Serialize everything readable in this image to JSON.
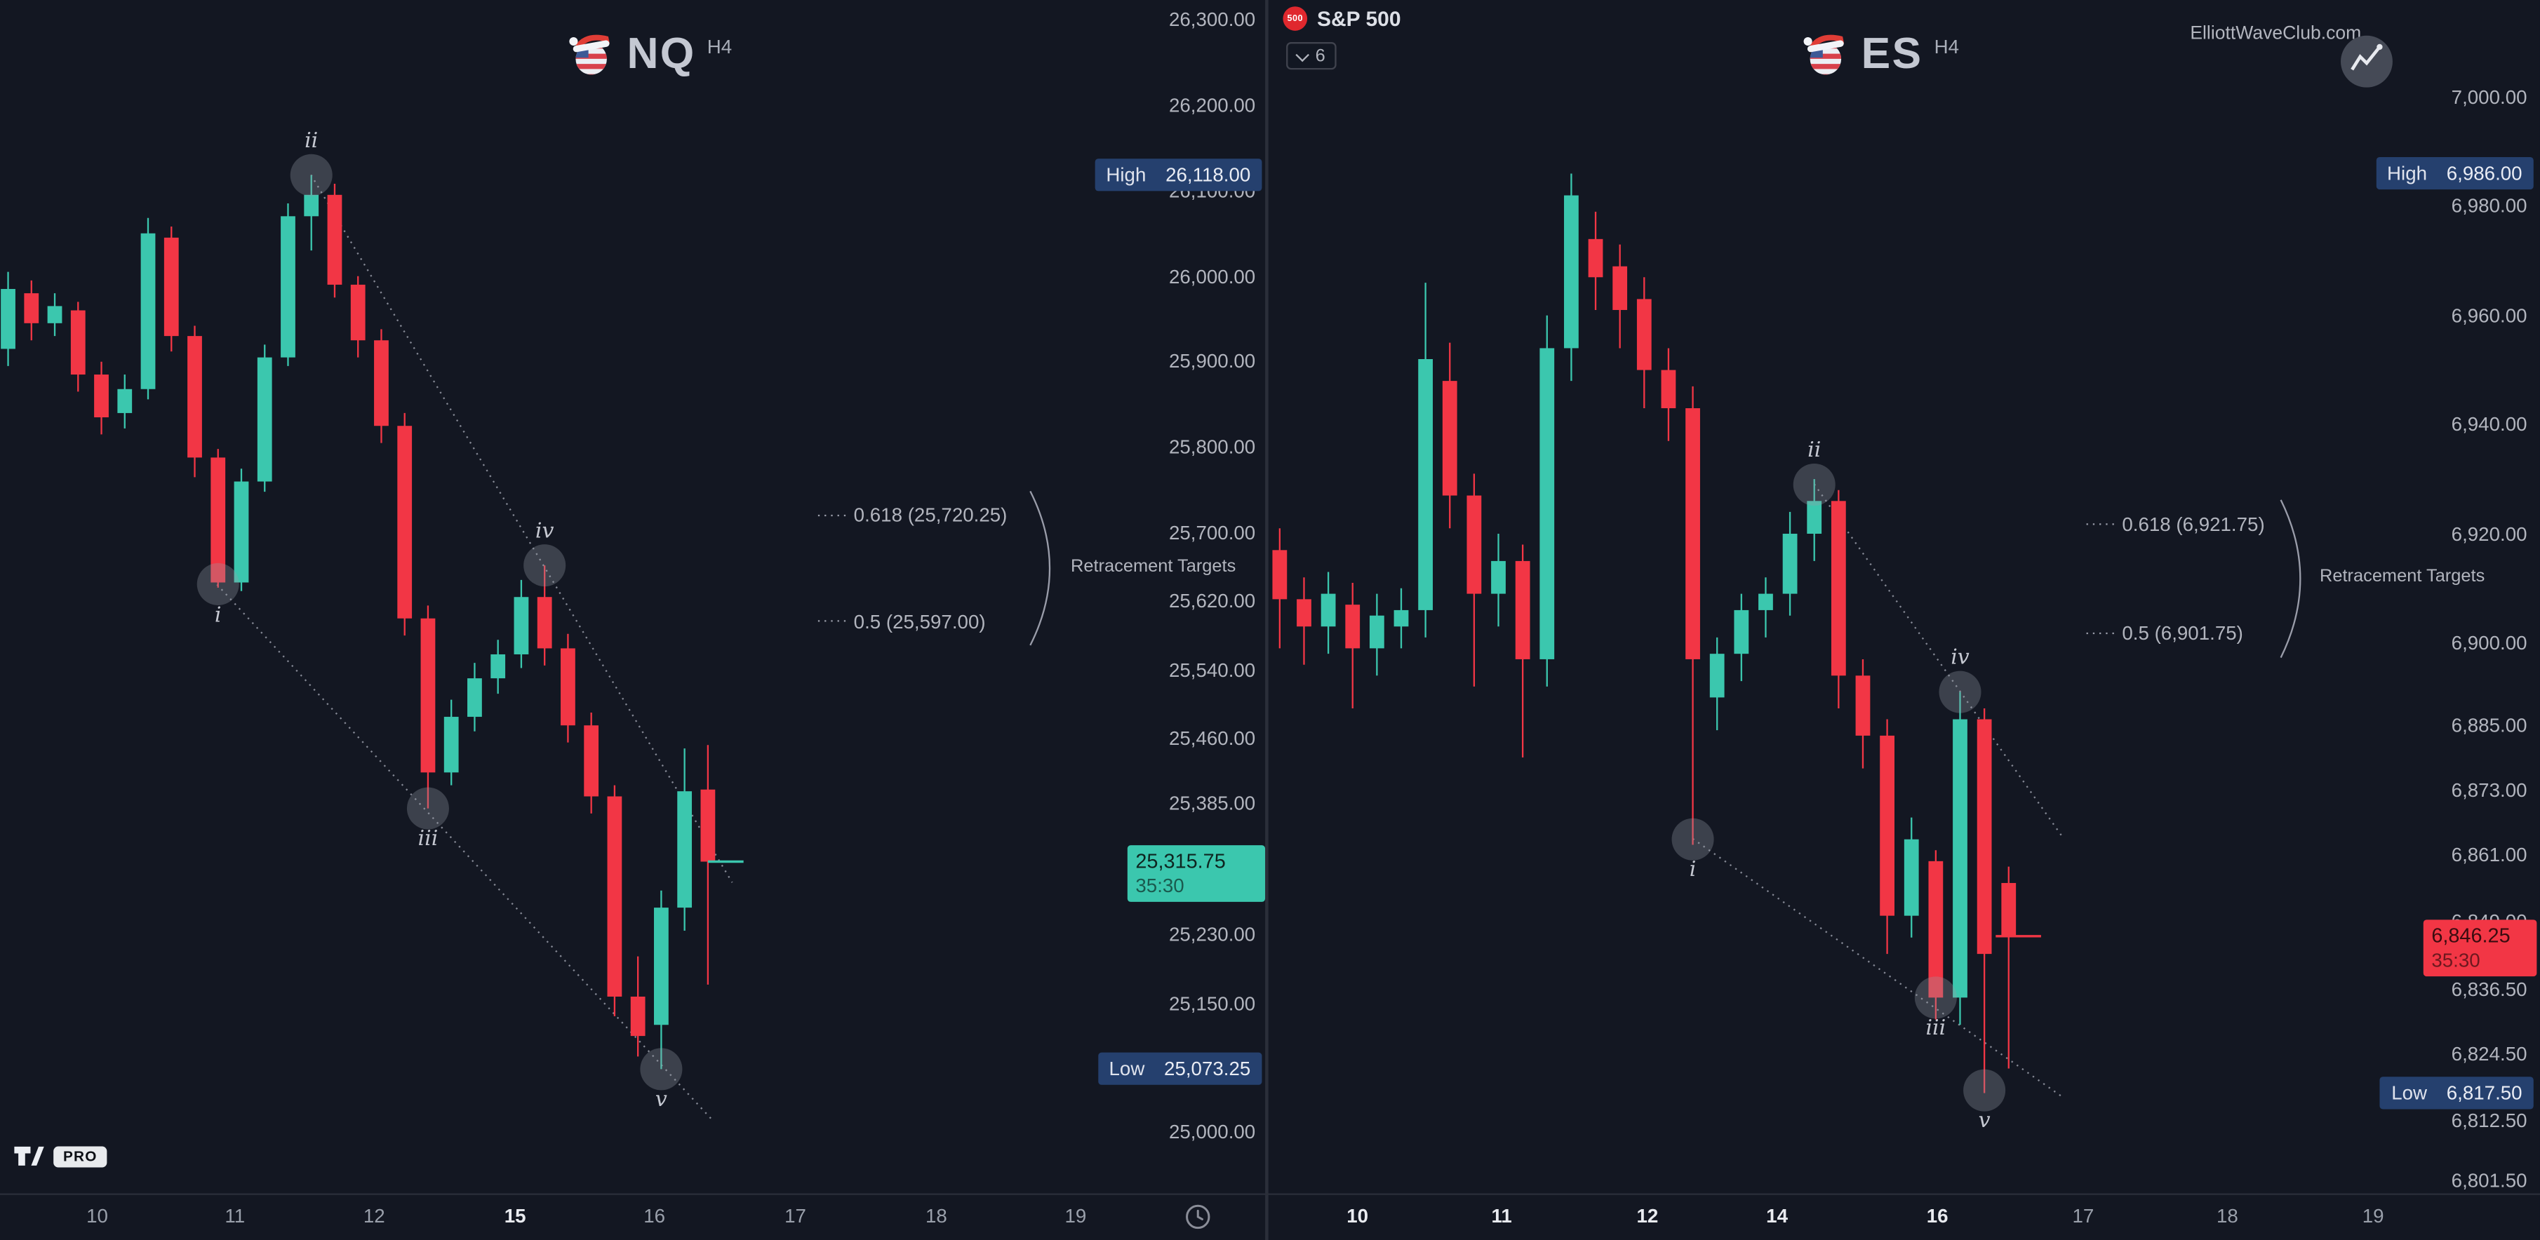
{
  "colors": {
    "bg": "#131722",
    "up": "#3bc7ae",
    "down": "#f23645",
    "axis_text": "#b2b5be",
    "dotted": "#9a9daa",
    "badge_bg": "#25406e",
    "divider": "#2a2e39"
  },
  "toolbar": {
    "symbol_label": "S&P 500",
    "badge": "500",
    "tree_count": "6"
  },
  "branding": {
    "site": "ElliottWaveClub.com",
    "pro": "PRO"
  },
  "chart_data": [
    {
      "id": "nq",
      "type": "candlestick",
      "symbol": "NQ",
      "timeframe": "H4",
      "high_badge": {
        "label": "High",
        "value": "26,118.00",
        "price": 26118
      },
      "low_badge": {
        "label": "Low",
        "value": "25,073.25",
        "price": 25073.25
      },
      "last_price": {
        "value": "25,315.75",
        "countdown": "35:30",
        "price": 25315.75,
        "direction": "up"
      },
      "retracement": {
        "caption": "Retracement Targets",
        "levels": [
          {
            "text": "0.618 (25,720.25)",
            "price": 25720.25
          },
          {
            "text": "0.5 (25,597.00)",
            "price": 25597.0
          }
        ]
      },
      "waves": [
        {
          "label": "i",
          "index": 9,
          "price": 25640,
          "side": "below"
        },
        {
          "label": "ii",
          "index": 13,
          "price": 26118,
          "side": "above"
        },
        {
          "label": "iii",
          "index": 18,
          "price": 25378,
          "side": "below"
        },
        {
          "label": "iv",
          "index": 23,
          "price": 25662,
          "side": "above"
        },
        {
          "label": "v",
          "index": 28,
          "price": 25073.25,
          "side": "below"
        }
      ],
      "y_ticks": [
        {
          "label": "26,300.00",
          "price": 26300
        },
        {
          "label": "26,200.00",
          "price": 26200
        },
        {
          "label": "26,100.00",
          "price": 26100
        },
        {
          "label": "26,000.00",
          "price": 26000
        },
        {
          "label": "25,900.00",
          "price": 25900
        },
        {
          "label": "25,800.00",
          "price": 25800
        },
        {
          "label": "25,700.00",
          "price": 25700
        },
        {
          "label": "25,620.00",
          "price": 25620
        },
        {
          "label": "25,540.00",
          "price": 25540
        },
        {
          "label": "25,460.00",
          "price": 25460
        },
        {
          "label": "25,385.00",
          "price": 25385
        },
        {
          "label": "25,230.00",
          "price": 25230
        },
        {
          "label": "25,150.00",
          "price": 25150
        },
        {
          "label": "25,000.00",
          "price": 25000
        }
      ],
      "x_ticks": [
        {
          "label": "10",
          "x": 60,
          "bold": false
        },
        {
          "label": "11",
          "x": 145,
          "bold": false
        },
        {
          "label": "12",
          "x": 231,
          "bold": false
        },
        {
          "label": "15",
          "x": 318,
          "bold": true
        },
        {
          "label": "16",
          "x": 404,
          "bold": false
        },
        {
          "label": "17",
          "x": 491,
          "bold": false
        },
        {
          "label": "18",
          "x": 578,
          "bold": false
        },
        {
          "label": "19",
          "x": 664,
          "bold": false
        }
      ],
      "candles": [
        [
          25915,
          26005,
          25895,
          25985
        ],
        [
          25980,
          25995,
          25925,
          25945
        ],
        [
          25945,
          25980,
          25930,
          25965
        ],
        [
          25960,
          25970,
          25865,
          25885
        ],
        [
          25885,
          25900,
          25815,
          25835
        ],
        [
          25840,
          25885,
          25822,
          25868
        ],
        [
          25868,
          26068,
          25856,
          26050
        ],
        [
          26045,
          26058,
          25912,
          25930
        ],
        [
          25930,
          25942,
          25765,
          25788
        ],
        [
          25788,
          25798,
          25636,
          25642
        ],
        [
          25642,
          25775,
          25632,
          25760
        ],
        [
          25760,
          25920,
          25748,
          25905
        ],
        [
          25905,
          26085,
          25895,
          26070
        ],
        [
          26070,
          26118,
          26030,
          26095
        ],
        [
          26095,
          26108,
          25975,
          25990
        ],
        [
          25990,
          26000,
          25905,
          25925
        ],
        [
          25925,
          25938,
          25805,
          25825
        ],
        [
          25825,
          25840,
          25580,
          25600
        ],
        [
          25600,
          25615,
          25378,
          25420
        ],
        [
          25420,
          25505,
          25405,
          25485
        ],
        [
          25485,
          25548,
          25468,
          25530
        ],
        [
          25530,
          25575,
          25512,
          25558
        ],
        [
          25558,
          25645,
          25542,
          25625
        ],
        [
          25625,
          25662,
          25545,
          25565
        ],
        [
          25565,
          25582,
          25455,
          25475
        ],
        [
          25475,
          25490,
          25372,
          25392
        ],
        [
          25392,
          25405,
          25135,
          25158
        ],
        [
          25158,
          25205,
          25088,
          25112
        ],
        [
          25125,
          25282,
          25073.25,
          25262
        ],
        [
          25262,
          25448,
          25235,
          25398
        ],
        [
          25400,
          25452,
          25172,
          25315.75
        ]
      ],
      "trendlines": [
        [
          192,
          108,
          452,
          545
        ],
        [
          134,
          361,
          440,
          692
        ]
      ],
      "layout": {
        "price_top": 26300,
        "y_top": 12,
        "price_bottom": 25000,
        "y_bottom": 699,
        "x0": 5,
        "dx": 14.4,
        "candle_w": 9,
        "axis_left": 696,
        "axis_right": 775,
        "retr_leader_x1": 505,
        "retr_leader_x2": 523,
        "retr_text_x": 527,
        "brace_x": 636,
        "caption_x": 661,
        "last_tick_x1": 437,
        "last_tick_x2": 459
      }
    },
    {
      "id": "es",
      "type": "candlestick",
      "symbol": "ES",
      "timeframe": "H4",
      "high_badge": {
        "label": "High",
        "value": "6,986.00",
        "price": 6986
      },
      "low_badge": {
        "label": "Low",
        "value": "6,817.50",
        "price": 6817.5
      },
      "last_price": {
        "value": "6,846.25",
        "countdown": "35:30",
        "price": 6846.25,
        "direction": "down"
      },
      "retracement": {
        "caption": "Retracement Targets",
        "levels": [
          {
            "text": "0.618 (6,921.75)",
            "price": 6921.75
          },
          {
            "text": "0.5 (6,901.75)",
            "price": 6901.75
          }
        ]
      },
      "waves": [
        {
          "label": "i",
          "index": 17,
          "price": 6864,
          "side": "below"
        },
        {
          "label": "ii",
          "index": 22,
          "price": 6929,
          "side": "above"
        },
        {
          "label": "iii",
          "index": 27,
          "price": 6835,
          "side": "below"
        },
        {
          "label": "iv",
          "index": 28,
          "price": 6891,
          "side": "above"
        },
        {
          "label": "v",
          "index": 29,
          "price": 6818,
          "side": "below"
        }
      ],
      "y_ticks": [
        {
          "label": "7,000.00",
          "price": 7000
        },
        {
          "label": "6,980.00",
          "price": 6980
        },
        {
          "label": "6,960.00",
          "price": 6960
        },
        {
          "label": "6,940.00",
          "price": 6940
        },
        {
          "label": "6,920.00",
          "price": 6920
        },
        {
          "label": "6,900.00",
          "price": 6900
        },
        {
          "label": "6,885.00",
          "price": 6885
        },
        {
          "label": "6,873.00",
          "price": 6873
        },
        {
          "label": "6,861.00",
          "price": 6861
        },
        {
          "label": "6,849.00",
          "price": 6849
        },
        {
          "label": "6,836.50",
          "price": 6836.5
        },
        {
          "label": "6,824.50",
          "price": 6824.5
        },
        {
          "label": "6,812.50",
          "price": 6812.5
        },
        {
          "label": "6,801.50",
          "price": 6801.5
        }
      ],
      "x_ticks": [
        {
          "label": "10",
          "x": 838,
          "bold": true
        },
        {
          "label": "11",
          "x": 927,
          "bold": true
        },
        {
          "label": "12",
          "x": 1017,
          "bold": true
        },
        {
          "label": "14",
          "x": 1097,
          "bold": true
        },
        {
          "label": "16",
          "x": 1196,
          "bold": true
        },
        {
          "label": "17",
          "x": 1286,
          "bold": false
        },
        {
          "label": "18",
          "x": 1375,
          "bold": false
        },
        {
          "label": "19",
          "x": 1465,
          "bold": false
        }
      ],
      "candles": [
        [
          6917,
          6921,
          6899,
          6908
        ],
        [
          6908,
          6912,
          6896,
          6903
        ],
        [
          6903,
          6913,
          6898,
          6909
        ],
        [
          6907,
          6911,
          6888,
          6899
        ],
        [
          6899,
          6909,
          6894,
          6905
        ],
        [
          6903,
          6910,
          6899,
          6906
        ],
        [
          6906,
          6966,
          6901,
          6952
        ],
        [
          6948,
          6955,
          6921,
          6927
        ],
        [
          6927,
          6931,
          6892,
          6909
        ],
        [
          6909,
          6920,
          6903,
          6915
        ],
        [
          6915,
          6918,
          6879,
          6897
        ],
        [
          6897,
          6960,
          6892,
          6954
        ],
        [
          6954,
          6986,
          6948,
          6982
        ],
        [
          6974,
          6979,
          6961,
          6967
        ],
        [
          6969,
          6973,
          6954,
          6961
        ],
        [
          6963,
          6967,
          6943,
          6950
        ],
        [
          6950,
          6954,
          6937,
          6943
        ],
        [
          6943,
          6947,
          6863,
          6897
        ],
        [
          6890,
          6901,
          6884,
          6898
        ],
        [
          6898,
          6909,
          6893,
          6906
        ],
        [
          6906,
          6912,
          6901,
          6909
        ],
        [
          6909,
          6924,
          6905,
          6920
        ],
        [
          6920,
          6930,
          6915,
          6926
        ],
        [
          6926,
          6928,
          6888,
          6894
        ],
        [
          6894,
          6897,
          6877,
          6883
        ],
        [
          6883,
          6886,
          6843,
          6850
        ],
        [
          6850,
          6868,
          6846,
          6864
        ],
        [
          6860,
          6862,
          6831,
          6835
        ],
        [
          6835,
          6891,
          6830,
          6886
        ],
        [
          6886,
          6888,
          6817.5,
          6843
        ],
        [
          6856,
          6859,
          6822,
          6846.25
        ]
      ],
      "trendlines": [
        [
          1120,
          299,
          1274,
          518
        ],
        [
          1045,
          518,
          1274,
          678
        ]
      ],
      "layout": {
        "price_top": 7000,
        "y_top": 60,
        "price_bottom": 6801.5,
        "y_bottom": 729,
        "x0": 790,
        "dx": 15.0,
        "candle_w": 9,
        "axis_left": 1496,
        "axis_right": 1560,
        "retr_leader_x1": 1288,
        "retr_leader_x2": 1306,
        "retr_text_x": 1310,
        "brace_x": 1408,
        "caption_x": 1432,
        "last_tick_x1": 1232,
        "last_tick_x2": 1260
      }
    }
  ]
}
